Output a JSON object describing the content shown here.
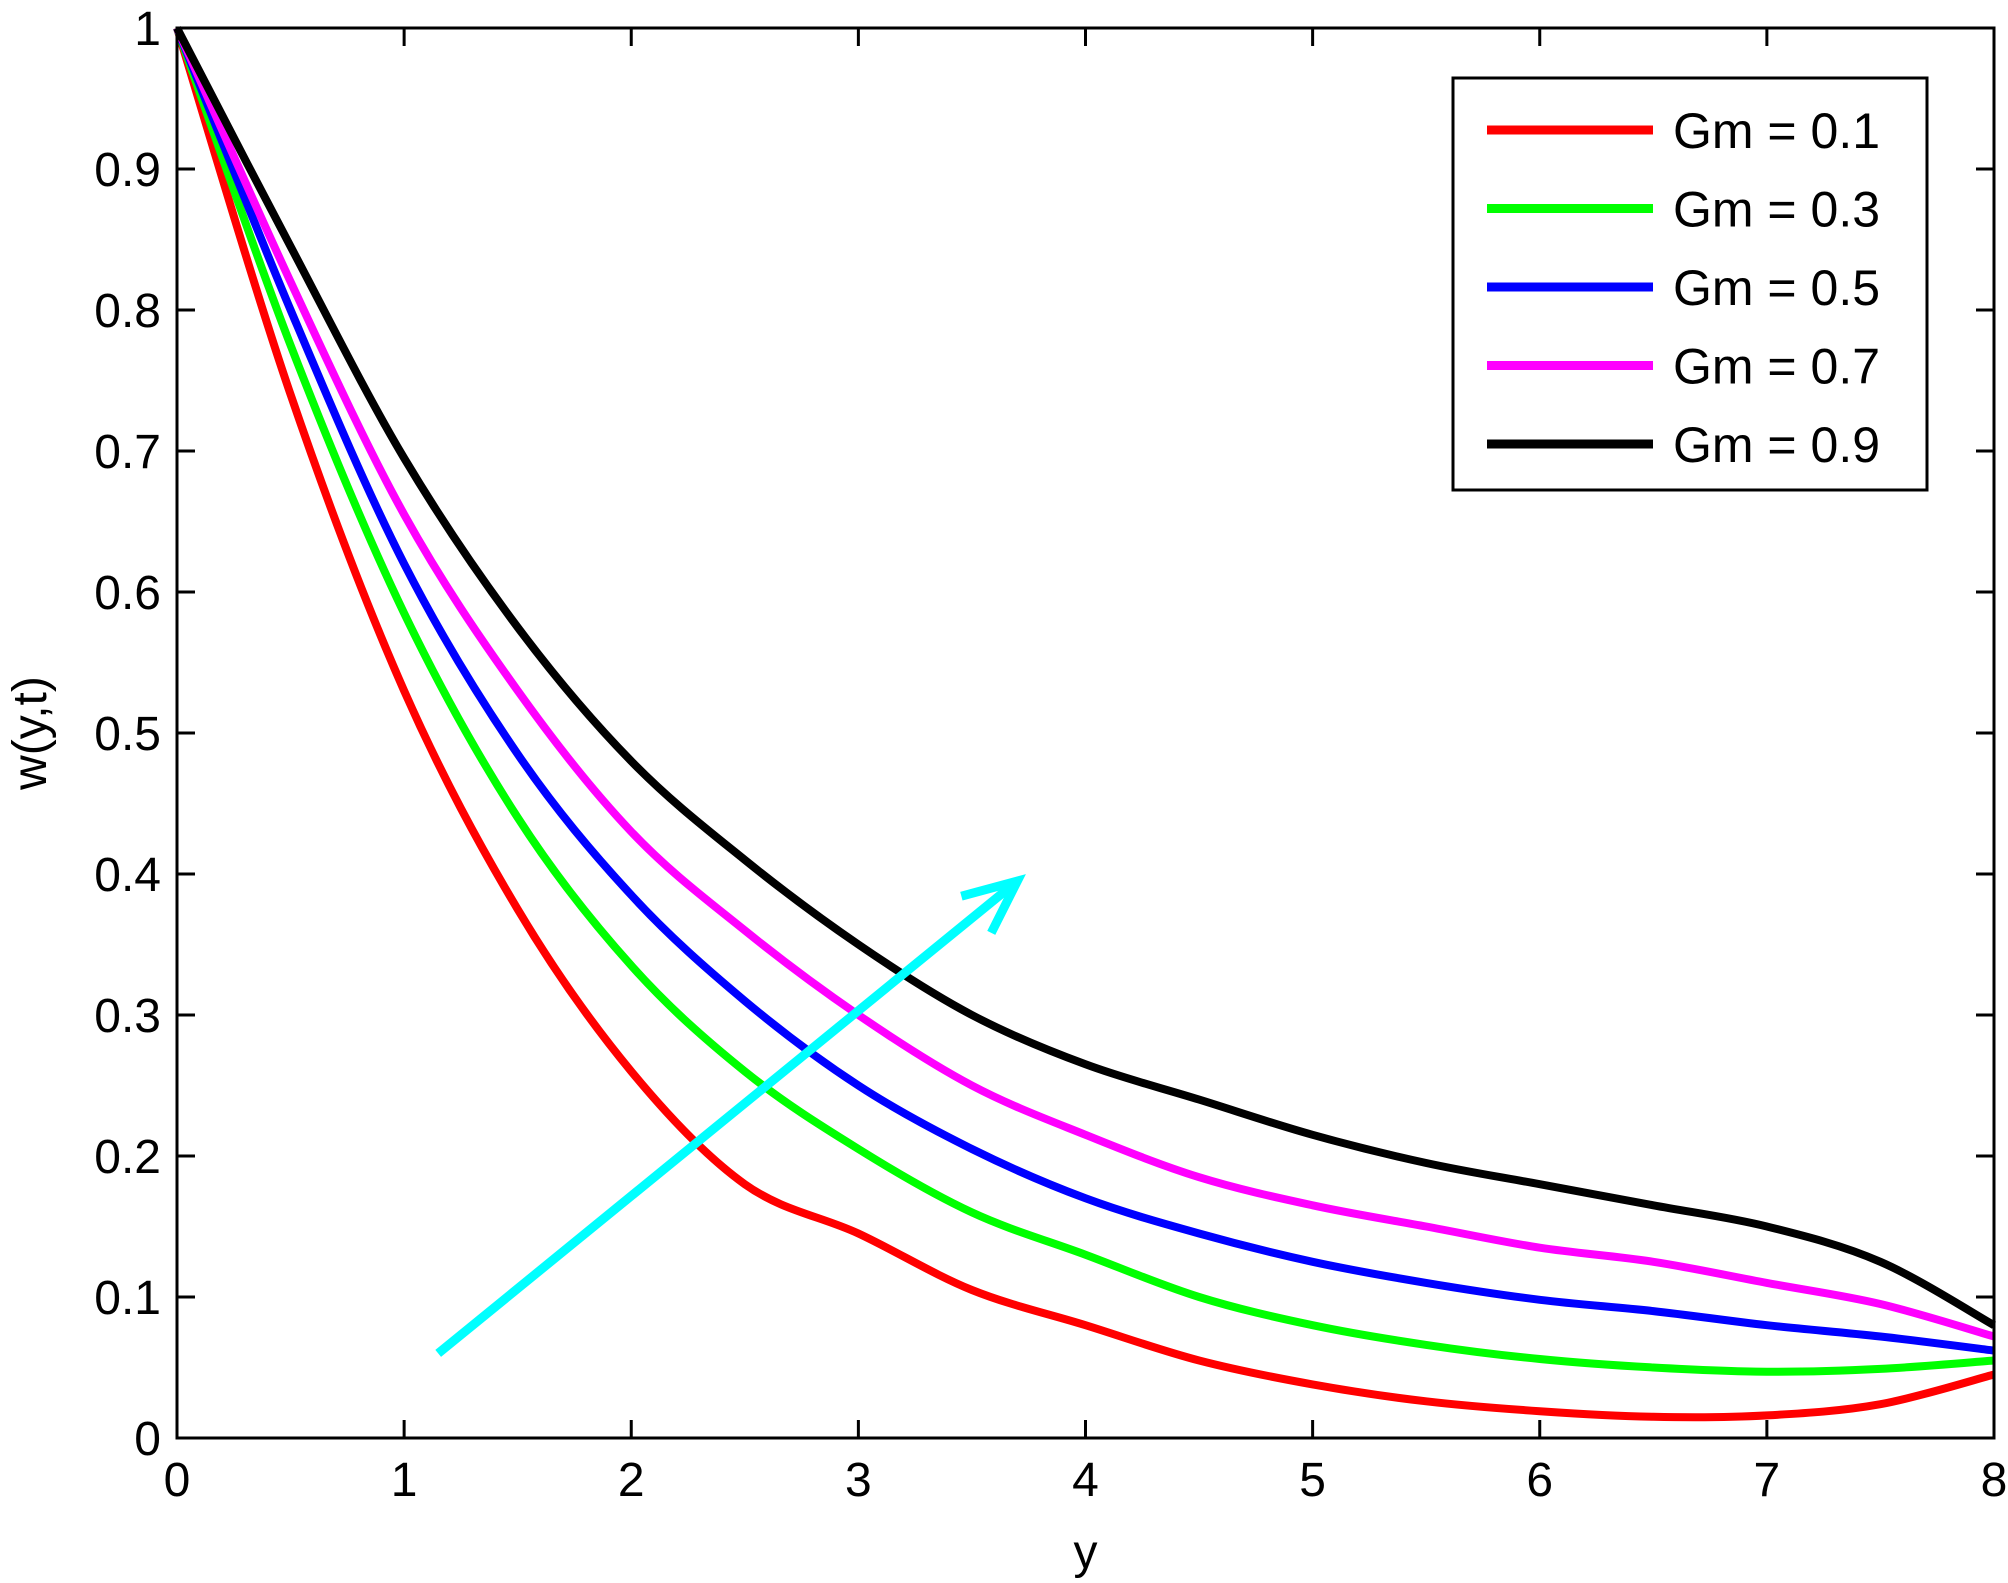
{
  "chart_data": {
    "type": "line",
    "xlabel": "y",
    "ylabel": "w(y,t)",
    "xlim": [
      0,
      8
    ],
    "ylim": [
      0,
      1
    ],
    "xticks": [
      0,
      1,
      2,
      3,
      4,
      5,
      6,
      7,
      8
    ],
    "xtick_labels": [
      "0",
      "1",
      "2",
      "3",
      "4",
      "5",
      "6",
      "7",
      "8"
    ],
    "yticks": [
      0,
      0.1,
      0.2,
      0.3,
      0.4,
      0.5,
      0.6,
      0.7,
      0.8,
      0.9,
      1
    ],
    "ytick_labels": [
      "0",
      "0.1",
      "0.2",
      "0.3",
      "0.4",
      "0.5",
      "0.6",
      "0.7",
      "0.8",
      "0.9",
      "1"
    ],
    "grid": false,
    "legend_position": "top-right",
    "x": [
      0,
      0.5,
      1,
      1.5,
      2,
      2.5,
      3,
      3.5,
      4,
      4.5,
      5,
      5.5,
      6,
      6.5,
      7,
      7.5,
      8
    ],
    "series": [
      {
        "name": "Gm = 0.1",
        "color": "#ff0000",
        "values": [
          1.0,
          0.74,
          0.53,
          0.375,
          0.26,
          0.18,
          0.145,
          0.105,
          0.08,
          0.055,
          0.038,
          0.026,
          0.019,
          0.015,
          0.016,
          0.024,
          0.045
        ]
      },
      {
        "name": "Gm = 0.3",
        "color": "#00ff00",
        "values": [
          1.0,
          0.775,
          0.585,
          0.44,
          0.335,
          0.26,
          0.205,
          0.16,
          0.13,
          0.1,
          0.08,
          0.066,
          0.056,
          0.05,
          0.047,
          0.049,
          0.055
        ]
      },
      {
        "name": "Gm = 0.5",
        "color": "#0000ff",
        "values": [
          1.0,
          0.8,
          0.62,
          0.485,
          0.385,
          0.31,
          0.25,
          0.205,
          0.17,
          0.145,
          0.125,
          0.11,
          0.098,
          0.09,
          0.08,
          0.072,
          0.062
        ]
      },
      {
        "name": "Gm = 0.7",
        "color": "#ff00ff",
        "values": [
          1.0,
          0.82,
          0.655,
          0.53,
          0.43,
          0.36,
          0.3,
          0.25,
          0.215,
          0.185,
          0.165,
          0.15,
          0.135,
          0.125,
          0.11,
          0.095,
          0.072
        ]
      },
      {
        "name": "Gm = 0.9",
        "color": "#000000",
        "values": [
          1.0,
          0.845,
          0.695,
          0.575,
          0.48,
          0.41,
          0.35,
          0.3,
          0.265,
          0.24,
          0.215,
          0.195,
          0.18,
          0.165,
          0.15,
          0.125,
          0.08
        ]
      }
    ],
    "annotations": [
      {
        "type": "arrow",
        "color": "#00ffff",
        "from": [
          1.15,
          0.06
        ],
        "to": [
          3.7,
          0.395
        ]
      }
    ]
  }
}
